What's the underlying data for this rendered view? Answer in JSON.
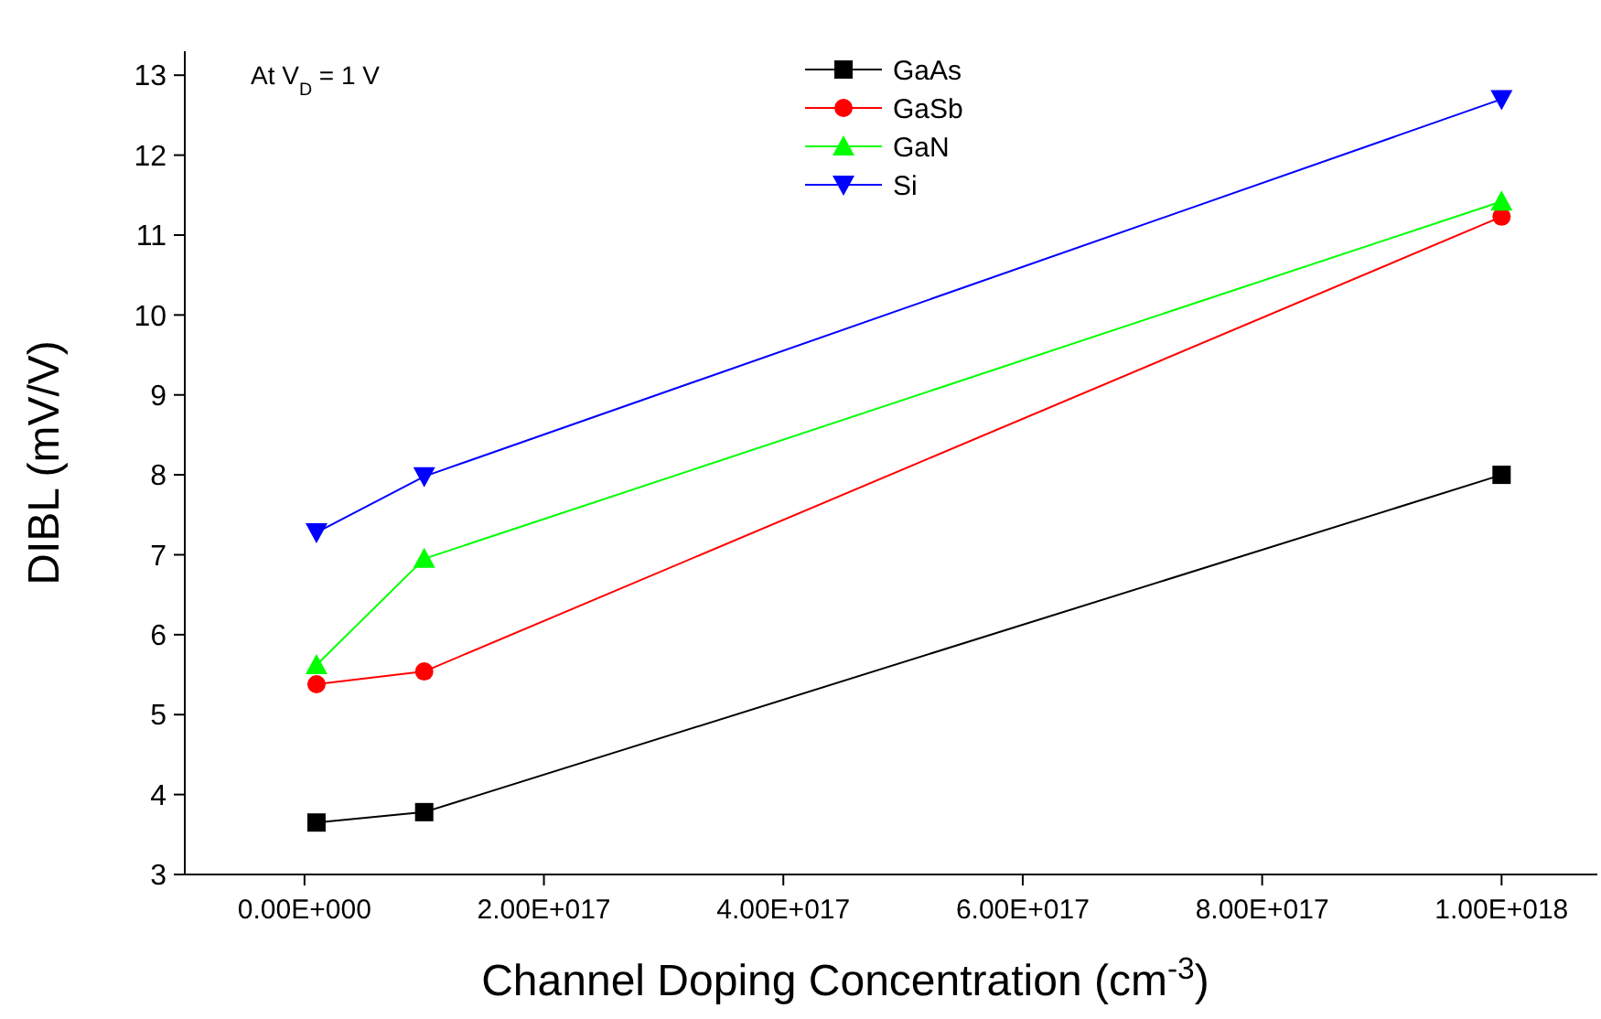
{
  "chart_data": {
    "type": "line",
    "xlabel": "Channel Doping Concentration (cm$^{-3}$)",
    "ylabel": "DIBL (mV/V)",
    "annotations": [
      "At V$_{D}$ = 1 V"
    ],
    "xlim": [
      -1e+17,
      1.08e+18
    ],
    "xticks": [
      {
        "value": 0,
        "label": "0.00E+000"
      },
      {
        "value": 2e+17,
        "label": "2.00E+017"
      },
      {
        "value": 4e+17,
        "label": "4.00E+017"
      },
      {
        "value": 6e+17,
        "label": "6.00E+017"
      },
      {
        "value": 8e+17,
        "label": "8.00E+017"
      },
      {
        "value": 1e+18,
        "label": "1.00E+018"
      }
    ],
    "ylim": [
      3,
      13.3
    ],
    "yticks": [
      3,
      4,
      5,
      6,
      7,
      8,
      9,
      10,
      11,
      12,
      13
    ],
    "x": [
      1e+16,
      1e+17,
      1e+18
    ],
    "legend": "top",
    "grid": false,
    "series": [
      {
        "name": "GaAs",
        "color": "#000000",
        "marker": "square",
        "values": [
          3.65,
          3.78,
          8.0
        ]
      },
      {
        "name": "GaSb",
        "color": "#ff0000",
        "marker": "circle",
        "values": [
          5.38,
          5.54,
          11.23
        ]
      },
      {
        "name": "GaN",
        "color": "#00ff00",
        "marker": "triangle",
        "values": [
          5.62,
          6.95,
          11.42
        ]
      },
      {
        "name": "Si",
        "color": "#0000ff",
        "marker": "triangle-down",
        "values": [
          7.28,
          7.98,
          12.7
        ]
      }
    ]
  }
}
